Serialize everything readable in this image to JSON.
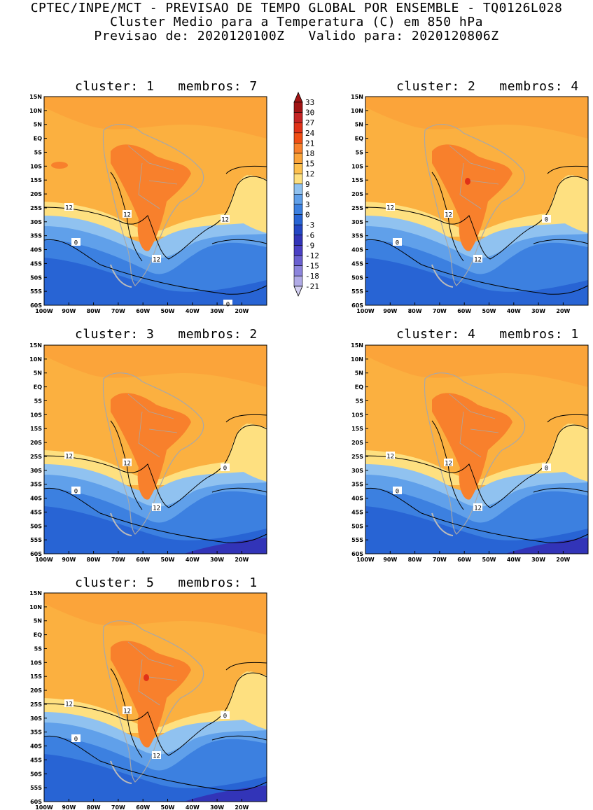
{
  "header": {
    "line1": "CPTEC/INPE/MCT - PREVISAO DE TEMPO GLOBAL POR ENSEMBLE - TQ0126L028",
    "line2": "Cluster Medio para a Temperatura (C) em 850 hPa",
    "line3": "Previsao de: 2020120100Z   Valido para: 2020120806Z"
  },
  "axes": {
    "lat_labels": [
      "15N",
      "10N",
      "5N",
      "EQ",
      "5S",
      "10S",
      "15S",
      "20S",
      "25S",
      "30S",
      "35S",
      "40S",
      "45S",
      "50S",
      "55S",
      "60S"
    ],
    "lon_labels": [
      "100W",
      "90W",
      "80W",
      "70W",
      "60W",
      "50W",
      "40W",
      "30W",
      "20W"
    ]
  },
  "colorbar": {
    "levels": [
      "33",
      "30",
      "27",
      "24",
      "21",
      "18",
      "15",
      "12",
      "9",
      "6",
      "3",
      "0",
      "-3",
      "-6",
      "-9",
      "-12",
      "-15",
      "-18",
      "-21"
    ],
    "colors": [
      "#a11414",
      "#c42424",
      "#e03218",
      "#f04e14",
      "#f8802c",
      "#fba43a",
      "#fdc04e",
      "#fee080",
      "#90c2f0",
      "#60a0ea",
      "#3c80e0",
      "#2864d4",
      "#2446c4",
      "#3234b8",
      "#4a40c4",
      "#6a60d0",
      "#8c84dc",
      "#b0aae6",
      "#d4d0f2"
    ]
  },
  "panels": [
    {
      "title": "cluster: 1   membros: 7",
      "contour_labels": [
        "12",
        "12",
        "12",
        "12",
        "0",
        "0"
      ]
    },
    {
      "title": "cluster: 2   membros: 4",
      "contour_labels": [
        "12",
        "12",
        "12",
        "0",
        "0"
      ]
    },
    {
      "title": "cluster: 3   membros: 2",
      "contour_labels": [
        "12",
        "12",
        "12",
        "0",
        "0"
      ]
    },
    {
      "title": "cluster: 4   membros: 1",
      "contour_labels": [
        "12",
        "12",
        "12",
        "0",
        "0"
      ]
    },
    {
      "title": "cluster: 5   membros: 1",
      "contour_labels": [
        "12",
        "12",
        "12",
        "0",
        "0"
      ]
    }
  ]
}
